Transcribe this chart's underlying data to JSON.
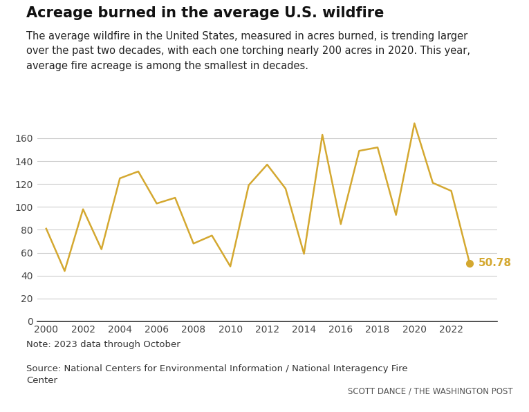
{
  "years": [
    2000,
    2001,
    2002,
    2003,
    2004,
    2005,
    2006,
    2007,
    2008,
    2009,
    2010,
    2011,
    2012,
    2013,
    2014,
    2015,
    2016,
    2017,
    2018,
    2019,
    2020,
    2021,
    2022,
    2023
  ],
  "values": [
    81,
    44,
    98,
    63,
    125,
    131,
    103,
    108,
    68,
    75,
    48,
    119,
    137,
    116,
    59,
    163,
    85,
    149,
    152,
    93,
    173,
    121,
    114,
    50.78
  ],
  "line_color": "#D4A830",
  "marker_color": "#D4A830",
  "last_label": "50.78",
  "title": "Acreage burned in the average U.S. wildfire",
  "subtitle": "The average wildfire in the United States, measured in acres burned, is trending larger\nover the past two decades, with each one torching nearly 200 acres in 2020. This year,\naverage fire acreage is among the smallest in decades.",
  "note": "Note: 2023 data through October",
  "source": "Source: National Centers for Environmental Information / National Interagency Fire\nCenter",
  "credit": "SCOTT DANCE / THE WASHINGTON POST",
  "ylim": [
    0,
    180
  ],
  "yticks": [
    0,
    20,
    40,
    60,
    80,
    100,
    120,
    140,
    160
  ],
  "background_color": "#ffffff",
  "grid_color": "#cccccc",
  "title_fontsize": 15,
  "subtitle_fontsize": 10.5,
  "note_fontsize": 9.5,
  "credit_fontsize": 8.5
}
